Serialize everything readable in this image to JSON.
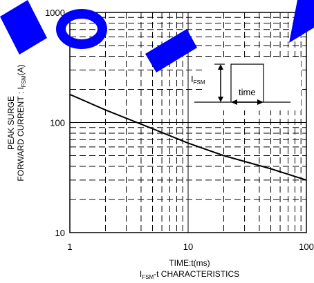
{
  "chart_data": {
    "type": "line",
    "x_scale": "log",
    "y_scale": "log",
    "xlim": [
      1,
      100
    ],
    "ylim": [
      10,
      1000
    ],
    "x_ticks": [
      "1",
      "10",
      "100"
    ],
    "y_ticks": [
      "10",
      "100",
      "1000"
    ],
    "xlabel": "TIME:t(ms)",
    "ylabel_line1": "PEAK SURGE",
    "ylabel_line2_prefix": "FORWARD CURRENT : I",
    "ylabel_line2_sub": "FSM",
    "ylabel_line2_suffix": "(A)",
    "caption_prefix": "I",
    "caption_sub": "FSM",
    "caption_suffix": "-t CHARACTERISTICS",
    "grid": true,
    "series": [
      {
        "x": [
          1,
          2,
          5,
          10,
          20,
          50,
          100
        ],
        "y": [
          180,
          130,
          88,
          65,
          50,
          38,
          30
        ]
      }
    ],
    "inset": {
      "label_prefix": "I",
      "label_sub": "FSM",
      "time_label": "time"
    },
    "watermark_color": "#0000ff"
  }
}
